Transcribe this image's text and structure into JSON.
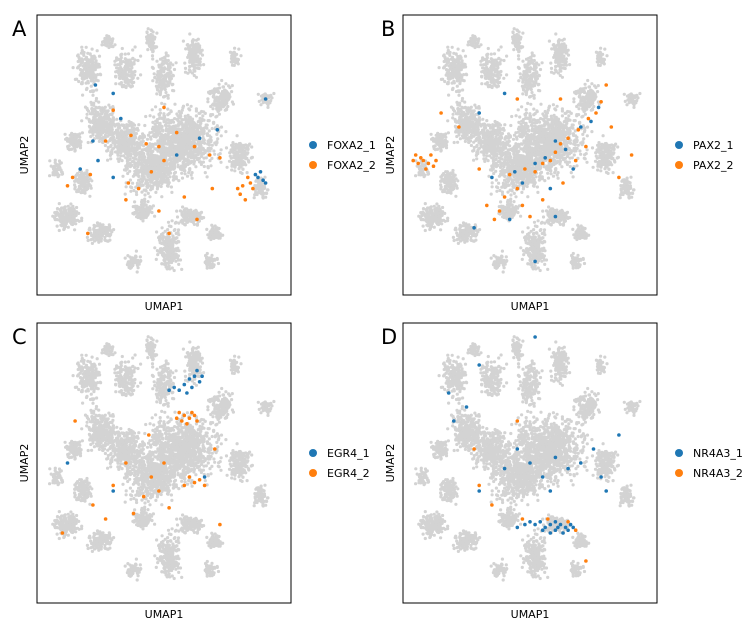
{
  "colors": {
    "background_cells": "#d3d3d3",
    "series_1": "#1f77b4",
    "series_2": "#ff7f0e"
  },
  "chart_data": [
    {
      "type": "scatter",
      "panel": "A",
      "xlabel": "UMAP1",
      "ylabel": "UMAP2",
      "legend_position": "right",
      "series": [
        {
          "name": "FOXA2_1",
          "color": "#1f77b4",
          "points": [
            [
              0.88,
              0.56
            ],
            [
              0.86,
              0.57
            ],
            [
              0.87,
              0.58
            ],
            [
              0.89,
              0.59
            ],
            [
              0.9,
              0.6
            ],
            [
              0.3,
              0.28
            ],
            [
              0.22,
              0.45
            ],
            [
              0.17,
              0.55
            ],
            [
              0.33,
              0.37
            ],
            [
              0.24,
              0.52
            ],
            [
              0.3,
              0.58
            ],
            [
              0.55,
              0.5
            ],
            [
              0.64,
              0.44
            ],
            [
              0.71,
              0.41
            ],
            [
              0.9,
              0.3
            ],
            [
              0.23,
              0.25
            ]
          ]
        },
        {
          "name": "FOXA2_2",
          "color": "#ff7f0e",
          "points": [
            [
              0.84,
              0.6
            ],
            [
              0.85,
              0.62
            ],
            [
              0.83,
              0.58
            ],
            [
              0.81,
              0.61
            ],
            [
              0.8,
              0.64
            ],
            [
              0.82,
              0.66
            ],
            [
              0.79,
              0.62
            ],
            [
              0.27,
              0.45
            ],
            [
              0.37,
              0.43
            ],
            [
              0.43,
              0.46
            ],
            [
              0.48,
              0.47
            ],
            [
              0.55,
              0.42
            ],
            [
              0.62,
              0.47
            ],
            [
              0.68,
              0.5
            ],
            [
              0.5,
              0.52
            ],
            [
              0.45,
              0.56
            ],
            [
              0.36,
              0.6
            ],
            [
              0.4,
              0.62
            ],
            [
              0.21,
              0.57
            ],
            [
              0.14,
              0.58
            ],
            [
              0.12,
              0.61
            ],
            [
              0.3,
              0.34
            ],
            [
              0.5,
              0.33
            ],
            [
              0.72,
              0.51
            ],
            [
              0.58,
              0.65
            ],
            [
              0.48,
              0.7
            ],
            [
              0.2,
              0.78
            ],
            [
              0.35,
              0.66
            ],
            [
              0.63,
              0.73
            ],
            [
              0.52,
              0.78
            ],
            [
              0.69,
              0.62
            ]
          ]
        }
      ]
    },
    {
      "type": "scatter",
      "panel": "B",
      "xlabel": "UMAP1",
      "ylabel": "UMAP2",
      "legend_position": "right",
      "series": [
        {
          "name": "PAX2_1",
          "color": "#1f77b4",
          "points": [
            [
              0.44,
              0.56
            ],
            [
              0.52,
              0.53
            ],
            [
              0.56,
              0.51
            ],
            [
              0.6,
              0.45
            ],
            [
              0.64,
              0.48
            ],
            [
              0.7,
              0.4
            ],
            [
              0.74,
              0.38
            ],
            [
              0.77,
              0.33
            ],
            [
              0.35,
              0.58
            ],
            [
              0.47,
              0.6
            ],
            [
              0.58,
              0.62
            ],
            [
              0.67,
              0.55
            ],
            [
              0.28,
              0.76
            ],
            [
              0.42,
              0.73
            ],
            [
              0.6,
              0.72
            ],
            [
              0.52,
              0.88
            ],
            [
              0.3,
              0.35
            ],
            [
              0.4,
              0.28
            ]
          ]
        },
        {
          "name": "PAX2_2",
          "color": "#ff7f0e",
          "points": [
            [
              0.05,
              0.5
            ],
            [
              0.07,
              0.51
            ],
            [
              0.08,
              0.52
            ],
            [
              0.1,
              0.53
            ],
            [
              0.12,
              0.54
            ],
            [
              0.06,
              0.53
            ],
            [
              0.09,
              0.55
            ],
            [
              0.11,
              0.5
            ],
            [
              0.13,
              0.52
            ],
            [
              0.04,
              0.52
            ],
            [
              0.48,
              0.55
            ],
            [
              0.52,
              0.56
            ],
            [
              0.55,
              0.53
            ],
            [
              0.58,
              0.52
            ],
            [
              0.6,
              0.49
            ],
            [
              0.62,
              0.46
            ],
            [
              0.65,
              0.44
            ],
            [
              0.69,
              0.41
            ],
            [
              0.73,
              0.37
            ],
            [
              0.76,
              0.35
            ],
            [
              0.78,
              0.31
            ],
            [
              0.42,
              0.57
            ],
            [
              0.45,
              0.62
            ],
            [
              0.4,
              0.65
            ],
            [
              0.38,
              0.7
            ],
            [
              0.36,
              0.73
            ],
            [
              0.33,
              0.68
            ],
            [
              0.47,
              0.68
            ],
            [
              0.5,
              0.72
            ],
            [
              0.55,
              0.66
            ],
            [
              0.63,
              0.6
            ],
            [
              0.68,
              0.52
            ],
            [
              0.72,
              0.47
            ],
            [
              0.8,
              0.25
            ],
            [
              0.82,
              0.4
            ],
            [
              0.85,
              0.58
            ],
            [
              0.15,
              0.35
            ],
            [
              0.22,
              0.4
            ],
            [
              0.3,
              0.55
            ],
            [
              0.45,
              0.3
            ],
            [
              0.62,
              0.3
            ],
            [
              0.9,
              0.5
            ]
          ]
        }
      ]
    },
    {
      "type": "scatter",
      "panel": "C",
      "xlabel": "UMAP1",
      "ylabel": "UMAP2",
      "legend_position": "right",
      "series": [
        {
          "name": "EGR4_1",
          "color": "#1f77b4",
          "points": [
            [
              0.6,
              0.2
            ],
            [
              0.62,
              0.19
            ],
            [
              0.64,
              0.21
            ],
            [
              0.58,
              0.22
            ],
            [
              0.56,
              0.24
            ],
            [
              0.63,
              0.17
            ],
            [
              0.61,
              0.23
            ],
            [
              0.59,
              0.25
            ],
            [
              0.65,
              0.19
            ],
            [
              0.54,
              0.23
            ],
            [
              0.52,
              0.24
            ],
            [
              0.66,
              0.55
            ],
            [
              0.3,
              0.6
            ],
            [
              0.12,
              0.5
            ]
          ]
        },
        {
          "name": "EGR4_2",
          "color": "#ff7f0e",
          "points": [
            [
              0.56,
              0.32
            ],
            [
              0.58,
              0.33
            ],
            [
              0.6,
              0.34
            ],
            [
              0.62,
              0.33
            ],
            [
              0.57,
              0.35
            ],
            [
              0.59,
              0.36
            ],
            [
              0.61,
              0.32
            ],
            [
              0.55,
              0.34
            ],
            [
              0.63,
              0.35
            ],
            [
              0.6,
              0.55
            ],
            [
              0.62,
              0.57
            ],
            [
              0.64,
              0.56
            ],
            [
              0.58,
              0.58
            ],
            [
              0.66,
              0.58
            ],
            [
              0.45,
              0.55
            ],
            [
              0.48,
              0.6
            ],
            [
              0.42,
              0.62
            ],
            [
              0.35,
              0.5
            ],
            [
              0.3,
              0.58
            ],
            [
              0.22,
              0.65
            ],
            [
              0.27,
              0.7
            ],
            [
              0.5,
              0.5
            ],
            [
              0.52,
              0.66
            ],
            [
              0.38,
              0.68
            ],
            [
              0.7,
              0.45
            ],
            [
              0.15,
              0.35
            ],
            [
              0.44,
              0.4
            ],
            [
              0.1,
              0.75
            ],
            [
              0.72,
              0.72
            ]
          ]
        }
      ]
    },
    {
      "type": "scatter",
      "panel": "D",
      "xlabel": "UMAP1",
      "ylabel": "UMAP2",
      "legend_position": "right",
      "series": [
        {
          "name": "NR4A3_1",
          "color": "#1f77b4",
          "points": [
            [
              0.52,
              0.72
            ],
            [
              0.54,
              0.71
            ],
            [
              0.56,
              0.73
            ],
            [
              0.58,
              0.72
            ],
            [
              0.6,
              0.74
            ],
            [
              0.62,
              0.72
            ],
            [
              0.64,
              0.73
            ],
            [
              0.66,
              0.72
            ],
            [
              0.6,
              0.71
            ],
            [
              0.63,
              0.75
            ],
            [
              0.65,
              0.74
            ],
            [
              0.55,
              0.74
            ],
            [
              0.58,
              0.75
            ],
            [
              0.61,
              0.73
            ],
            [
              0.67,
              0.73
            ],
            [
              0.5,
              0.71
            ],
            [
              0.48,
              0.72
            ],
            [
              0.45,
              0.73
            ],
            [
              0.55,
              0.55
            ],
            [
              0.6,
              0.48
            ],
            [
              0.65,
              0.52
            ],
            [
              0.58,
              0.6
            ],
            [
              0.7,
              0.5
            ],
            [
              0.75,
              0.45
            ],
            [
              0.78,
              0.55
            ],
            [
              0.5,
              0.5
            ],
            [
              0.45,
              0.45
            ],
            [
              0.4,
              0.52
            ],
            [
              0.3,
              0.6
            ],
            [
              0.25,
              0.3
            ],
            [
              0.2,
              0.35
            ],
            [
              0.18,
              0.25
            ],
            [
              0.3,
              0.15
            ],
            [
              0.52,
              0.05
            ],
            [
              0.85,
              0.4
            ],
            [
              0.8,
              0.6
            ]
          ]
        },
        {
          "name": "NR4A3_2",
          "color": "#ff7f0e",
          "points": [
            [
              0.57,
              0.7
            ],
            [
              0.65,
              0.71
            ],
            [
              0.68,
              0.74
            ],
            [
              0.47,
              0.7
            ],
            [
              0.35,
              0.65
            ],
            [
              0.3,
              0.58
            ],
            [
              0.28,
              0.45
            ],
            [
              0.72,
              0.85
            ],
            [
              0.45,
              0.35
            ]
          ]
        }
      ]
    }
  ]
}
